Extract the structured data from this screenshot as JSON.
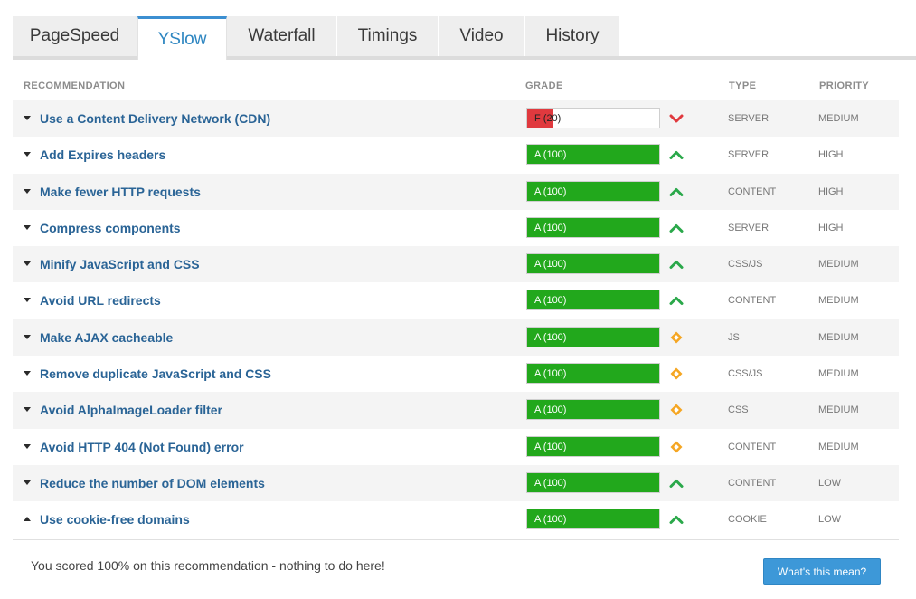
{
  "tabs": [
    {
      "label": "PageSpeed",
      "active": false
    },
    {
      "label": "YSlow",
      "active": true
    },
    {
      "label": "Waterfall",
      "active": false
    },
    {
      "label": "Timings",
      "active": false
    },
    {
      "label": "Video",
      "active": false
    },
    {
      "label": "History",
      "active": false
    }
  ],
  "headers": {
    "recommendation": "RECOMMENDATION",
    "grade": "GRADE",
    "type": "TYPE",
    "priority": "PRIORITY"
  },
  "colors": {
    "grade_pass": "#22a81c",
    "grade_fail": "#e0393e",
    "indicator_up": "#2aa84a",
    "indicator_down": "#e0393e",
    "indicator_neutral": "#f5a623",
    "link": "#2a6496",
    "accent": "#3d98d8"
  },
  "rows": [
    {
      "recommendation": "Use a Content Delivery Network (CDN)",
      "grade": "F (20)",
      "score": 20,
      "indicator": "chevron-down-icon",
      "type": "SERVER",
      "priority": "MEDIUM",
      "expanded": false
    },
    {
      "recommendation": "Add Expires headers",
      "grade": "A (100)",
      "score": 100,
      "indicator": "chevron-up-icon",
      "type": "SERVER",
      "priority": "HIGH",
      "expanded": false
    },
    {
      "recommendation": "Make fewer HTTP requests",
      "grade": "A (100)",
      "score": 100,
      "indicator": "chevron-up-icon",
      "type": "CONTENT",
      "priority": "HIGH",
      "expanded": false
    },
    {
      "recommendation": "Compress components",
      "grade": "A (100)",
      "score": 100,
      "indicator": "chevron-up-icon",
      "type": "SERVER",
      "priority": "HIGH",
      "expanded": false
    },
    {
      "recommendation": "Minify JavaScript and CSS",
      "grade": "A (100)",
      "score": 100,
      "indicator": "chevron-up-icon",
      "type": "CSS/JS",
      "priority": "MEDIUM",
      "expanded": false
    },
    {
      "recommendation": "Avoid URL redirects",
      "grade": "A (100)",
      "score": 100,
      "indicator": "chevron-up-icon",
      "type": "CONTENT",
      "priority": "MEDIUM",
      "expanded": false
    },
    {
      "recommendation": "Make AJAX cacheable",
      "grade": "A (100)",
      "score": 100,
      "indicator": "diamond-icon",
      "type": "JS",
      "priority": "MEDIUM",
      "expanded": false
    },
    {
      "recommendation": "Remove duplicate JavaScript and CSS",
      "grade": "A (100)",
      "score": 100,
      "indicator": "diamond-icon",
      "type": "CSS/JS",
      "priority": "MEDIUM",
      "expanded": false
    },
    {
      "recommendation": "Avoid AlphaImageLoader filter",
      "grade": "A (100)",
      "score": 100,
      "indicator": "diamond-icon",
      "type": "CSS",
      "priority": "MEDIUM",
      "expanded": false
    },
    {
      "recommendation": "Avoid HTTP 404 (Not Found) error",
      "grade": "A (100)",
      "score": 100,
      "indicator": "diamond-icon",
      "type": "CONTENT",
      "priority": "MEDIUM",
      "expanded": false
    },
    {
      "recommendation": "Reduce the number of DOM elements",
      "grade": "A (100)",
      "score": 100,
      "indicator": "chevron-up-icon",
      "type": "CONTENT",
      "priority": "LOW",
      "expanded": false
    },
    {
      "recommendation": "Use cookie-free domains",
      "grade": "A (100)",
      "score": 100,
      "indicator": "chevron-up-icon",
      "type": "COOKIE",
      "priority": "LOW",
      "expanded": true
    }
  ],
  "detail": {
    "text": "You scored 100% on this recommendation - nothing to do here!",
    "button_label": "What's this mean?"
  }
}
